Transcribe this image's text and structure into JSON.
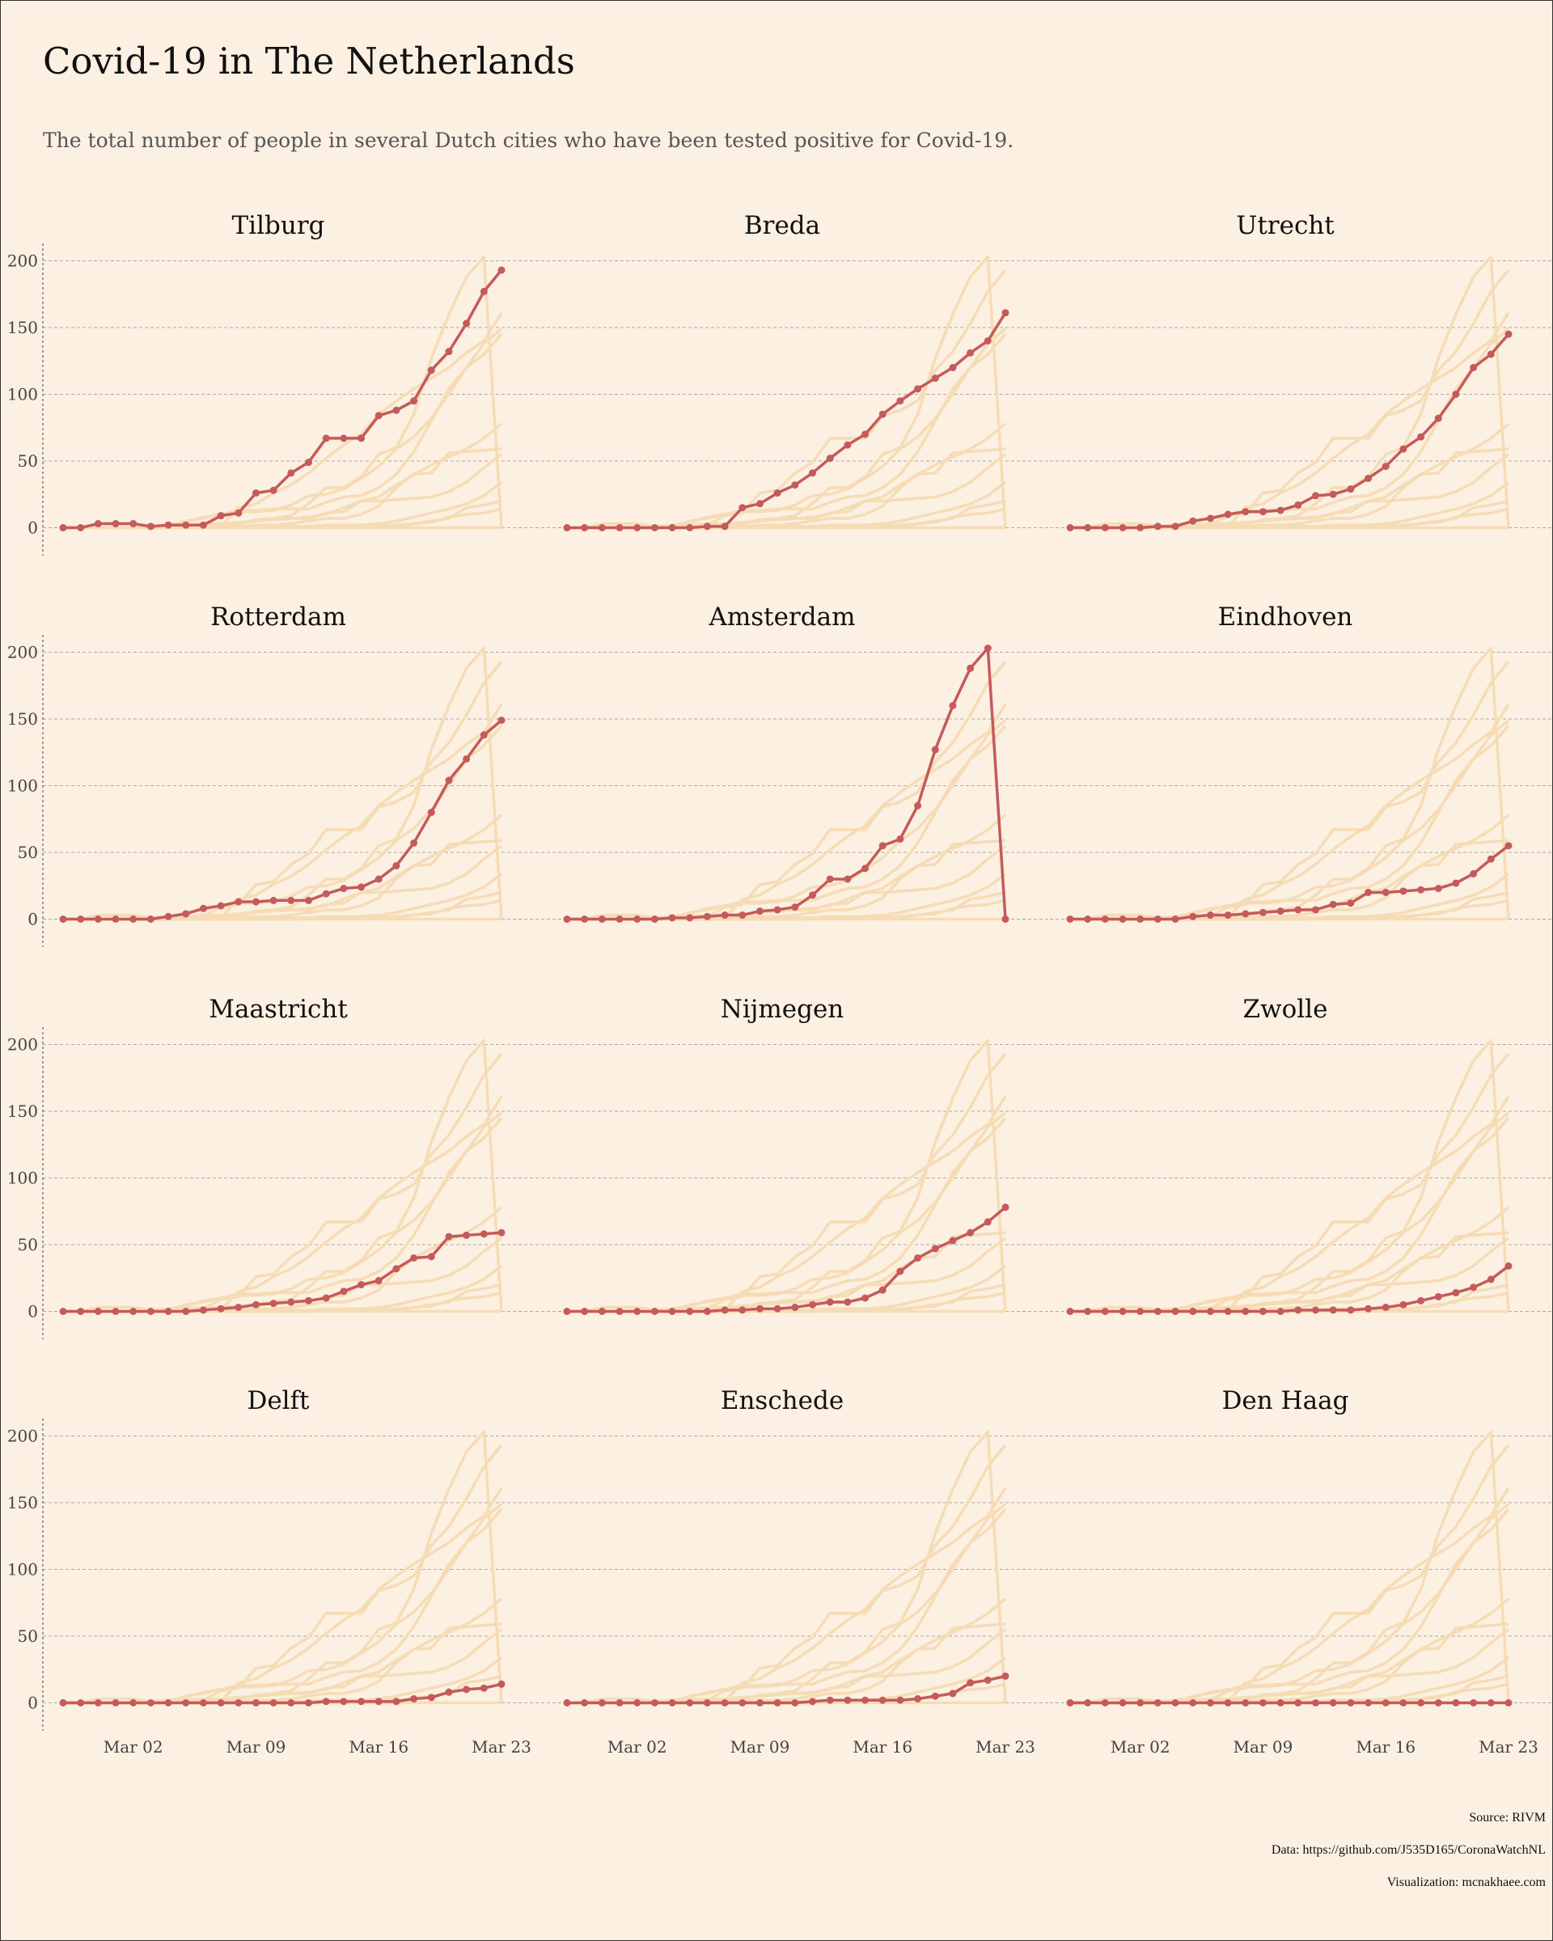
{
  "title": "Covid-19 in The Netherlands",
  "subtitle": "The total number of people in several Dutch cities who have been tested positive for Covid-19.",
  "credits": {
    "source": "Source: RIVM",
    "data": "Data: https://github.com/J535D165/CoronaWatchNL",
    "visualization": "Visualization: mcnakhaee.com"
  },
  "colors": {
    "highlight": "#c55a5a",
    "background_series": "#f6dcb5",
    "background": "#fbf0e2",
    "grid": "#aaaaaa"
  },
  "chart_data": {
    "type": "line",
    "layout": "small-multiples 4x3",
    "x": [
      "2020-02-27",
      "2020-02-28",
      "2020-02-29",
      "2020-03-01",
      "2020-03-02",
      "2020-03-03",
      "2020-03-04",
      "2020-03-05",
      "2020-03-06",
      "2020-03-07",
      "2020-03-08",
      "2020-03-09",
      "2020-03-10",
      "2020-03-11",
      "2020-03-12",
      "2020-03-13",
      "2020-03-14",
      "2020-03-15",
      "2020-03-16",
      "2020-03-17",
      "2020-03-18",
      "2020-03-19",
      "2020-03-20",
      "2020-03-21",
      "2020-03-22",
      "2020-03-23"
    ],
    "x_ticks": [
      {
        "label": "Mar 02",
        "index": 4
      },
      {
        "label": "Mar 09",
        "index": 11
      },
      {
        "label": "Mar 16",
        "index": 18
      },
      {
        "label": "Mar 23",
        "index": 25
      }
    ],
    "y_ticks": [
      0,
      50,
      100,
      150,
      200
    ],
    "ylim": [
      -10,
      213
    ],
    "grid": "horizontal dashed",
    "series": [
      {
        "name": "Tilburg",
        "values": [
          0,
          0,
          3,
          3,
          3,
          1,
          2,
          2,
          2,
          9,
          11,
          26,
          28,
          41,
          49,
          67,
          67,
          67,
          84,
          88,
          95,
          118,
          132,
          153,
          177,
          193
        ]
      },
      {
        "name": "Breda",
        "values": [
          0,
          0,
          0,
          0,
          0,
          0,
          0,
          0,
          1,
          1,
          15,
          18,
          26,
          32,
          41,
          52,
          62,
          70,
          85,
          95,
          104,
          112,
          120,
          131,
          140,
          161
        ]
      },
      {
        "name": "Utrecht",
        "values": [
          0,
          0,
          0,
          0,
          0,
          1,
          1,
          5,
          7,
          10,
          12,
          12,
          13,
          17,
          24,
          25,
          29,
          37,
          46,
          59,
          68,
          82,
          100,
          120,
          130,
          145
        ]
      },
      {
        "name": "Rotterdam",
        "values": [
          0,
          0,
          0,
          0,
          0,
          0,
          2,
          4,
          8,
          10,
          13,
          13,
          14,
          14,
          14,
          19,
          23,
          24,
          30,
          40,
          57,
          80,
          104,
          120,
          138,
          149
        ]
      },
      {
        "name": "Amsterdam",
        "values": [
          0,
          0,
          0,
          0,
          0,
          0,
          1,
          1,
          2,
          3,
          3,
          6,
          7,
          9,
          18,
          30,
          30,
          38,
          55,
          60,
          85,
          127,
          160,
          188,
          203,
          0
        ]
      },
      {
        "name": "Eindhoven",
        "values": [
          0,
          0,
          0,
          0,
          0,
          0,
          0,
          2,
          3,
          3,
          4,
          5,
          6,
          7,
          7,
          11,
          12,
          20,
          20,
          21,
          22,
          23,
          27,
          34,
          45,
          55
        ]
      },
      {
        "name": "Maastricht",
        "values": [
          0,
          0,
          0,
          0,
          0,
          0,
          0,
          0,
          1,
          2,
          3,
          5,
          6,
          7,
          8,
          10,
          15,
          20,
          23,
          32,
          40,
          41,
          56,
          57,
          58,
          59
        ]
      },
      {
        "name": "Nijmegen",
        "values": [
          0,
          0,
          0,
          0,
          0,
          0,
          0,
          0,
          0,
          1,
          1,
          2,
          2,
          3,
          5,
          7,
          7,
          10,
          16,
          30,
          40,
          47,
          53,
          59,
          67,
          78
        ]
      },
      {
        "name": "Zwolle",
        "values": [
          0,
          0,
          0,
          0,
          0,
          0,
          0,
          0,
          0,
          0,
          0,
          0,
          0,
          1,
          1,
          1,
          1,
          2,
          3,
          5,
          8,
          11,
          14,
          18,
          24,
          34
        ]
      },
      {
        "name": "Delft",
        "values": [
          0,
          0,
          0,
          0,
          0,
          0,
          0,
          0,
          0,
          0,
          0,
          0,
          0,
          0,
          0,
          1,
          1,
          1,
          1,
          1,
          3,
          4,
          8,
          10,
          11,
          14
        ]
      },
      {
        "name": "Enschede",
        "values": [
          0,
          0,
          0,
          0,
          0,
          0,
          0,
          0,
          0,
          0,
          0,
          0,
          0,
          0,
          1,
          2,
          2,
          2,
          2,
          2,
          3,
          5,
          7,
          15,
          17,
          20
        ]
      },
      {
        "name": "Den Haag",
        "values": [
          0,
          0,
          0,
          0,
          0,
          0,
          0,
          0,
          0,
          0,
          0,
          0,
          0,
          0,
          0,
          0,
          0,
          0,
          0,
          0,
          0,
          0,
          0,
          0,
          0,
          0
        ]
      }
    ]
  }
}
